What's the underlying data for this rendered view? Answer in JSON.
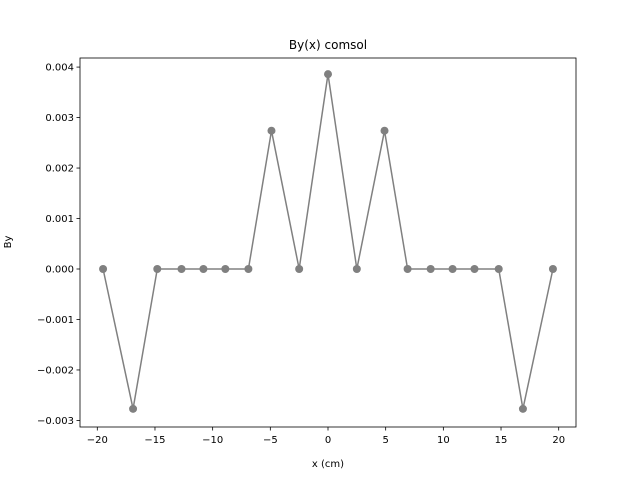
{
  "chart_data": {
    "type": "line",
    "title": "By(x) comsol",
    "xlabel": "x (cm)",
    "ylabel": "By",
    "xlim": [
      -21.5,
      21.5
    ],
    "ylim": [
      -0.00313,
      0.00418
    ],
    "xticks": [
      -20,
      -15,
      -10,
      -5,
      0,
      5,
      10,
      15,
      20
    ],
    "xtick_labels": [
      "−20",
      "−15",
      "−10",
      "−5",
      "0",
      "5",
      "10",
      "15",
      "20"
    ],
    "yticks": [
      -0.003,
      -0.002,
      -0.001,
      0.0,
      0.001,
      0.002,
      0.003,
      0.004
    ],
    "ytick_labels": [
      "−0.003",
      "−0.002",
      "−0.001",
      "0.000",
      "0.001",
      "0.002",
      "0.003",
      "0.004"
    ],
    "grid": false,
    "series": [
      {
        "color": "#808080",
        "marker": "circle",
        "x": [
          -19.5,
          -16.9,
          -14.8,
          -12.7,
          -10.8,
          -8.9,
          -6.9,
          -4.9,
          -2.5,
          0.0,
          2.5,
          4.9,
          6.9,
          8.9,
          10.8,
          12.7,
          14.8,
          16.9,
          19.5
        ],
        "y": [
          0.0,
          -0.00277,
          0.0,
          0.0,
          0.0,
          0.0,
          0.0,
          0.00274,
          0.0,
          0.00386,
          0.0,
          0.00274,
          0.0,
          0.0,
          0.0,
          0.0,
          0.0,
          -0.00277,
          0.0
        ]
      }
    ]
  }
}
